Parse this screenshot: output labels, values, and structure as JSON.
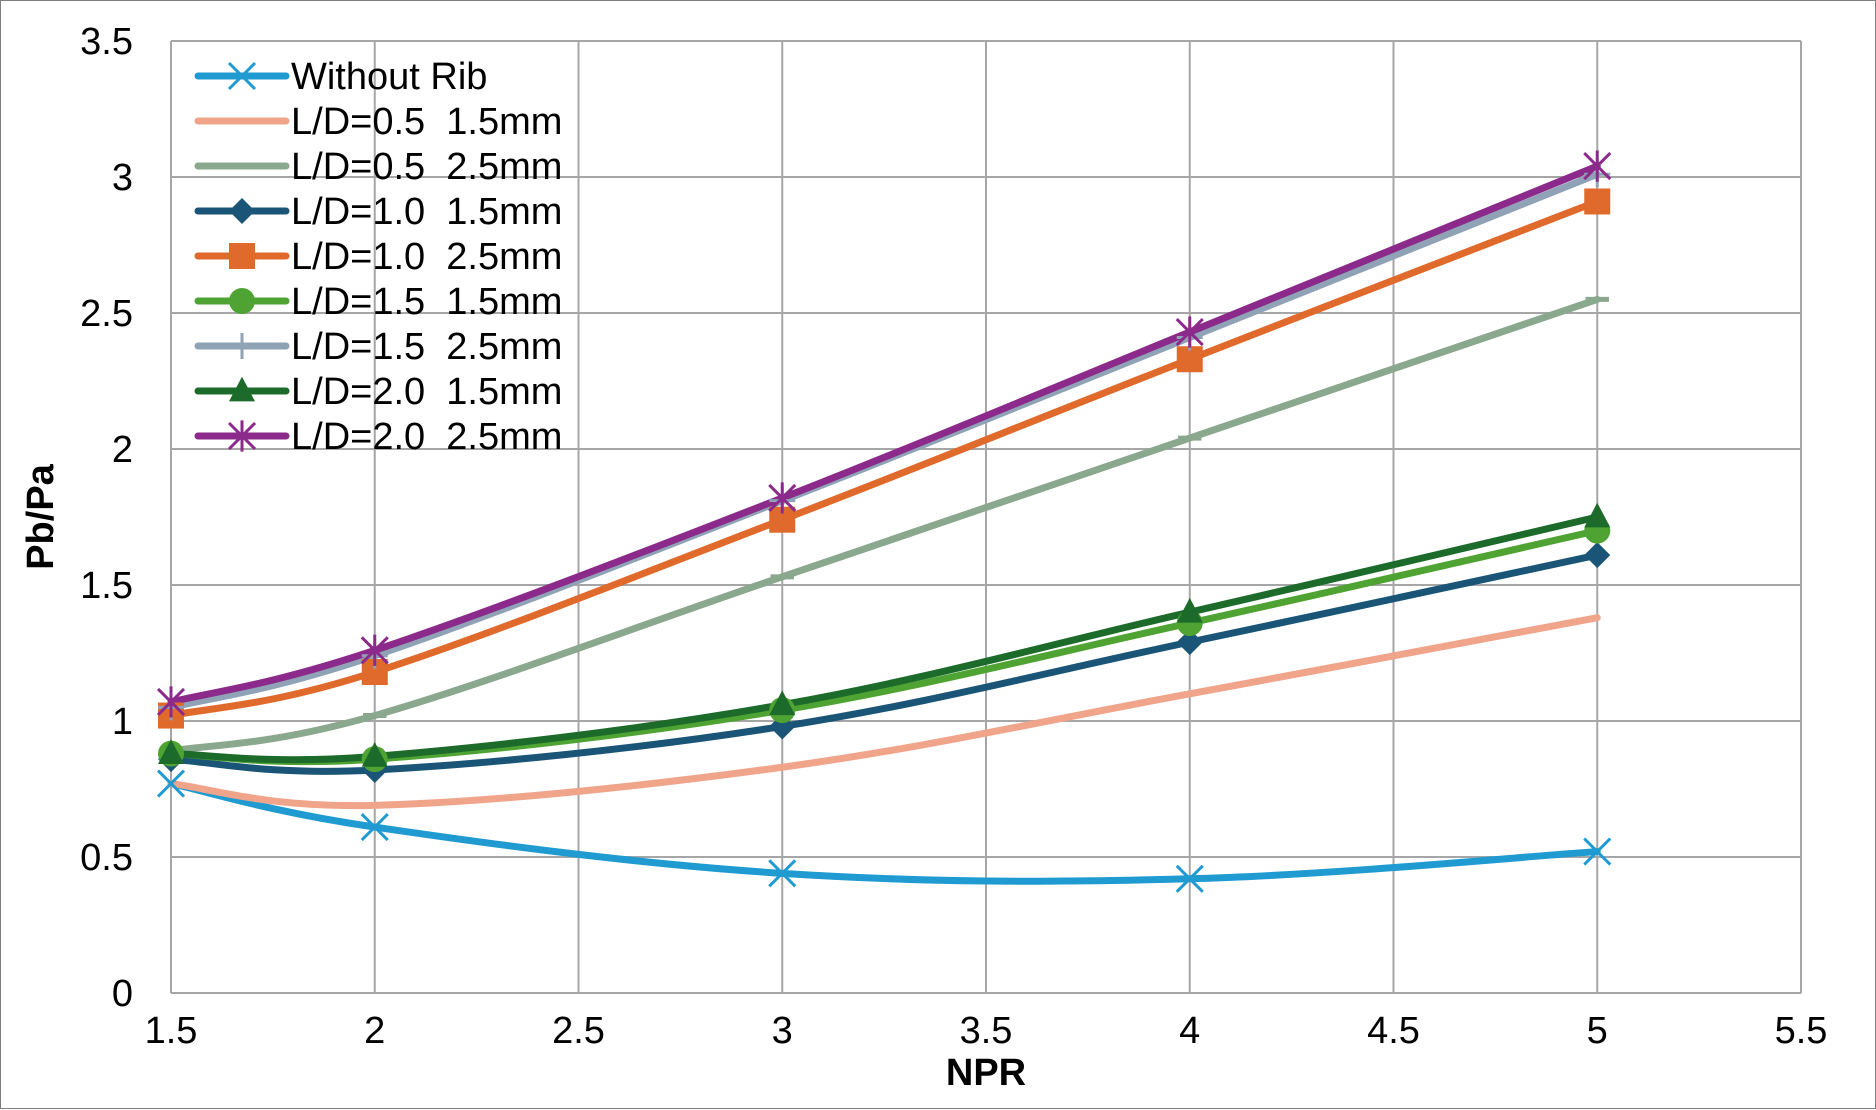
{
  "chart_data": {
    "type": "line",
    "xlabel": "NPR",
    "ylabel": "Pb/Pa",
    "xlim": [
      1.5,
      5.5
    ],
    "ylim": [
      0,
      3.5
    ],
    "x_ticks": [
      "1.5",
      "2",
      "2.5",
      "3",
      "3.5",
      "4",
      "4.5",
      "5",
      "5.5"
    ],
    "y_ticks": [
      "0",
      "0.5",
      "1",
      "1.5",
      "2",
      "2.5",
      "3",
      "3.5"
    ],
    "grid": true,
    "legend_position": "top-left inside",
    "x": [
      1.5,
      2,
      3,
      4,
      5
    ],
    "series": [
      {
        "name": "Without Rib",
        "values": [
          0.77,
          0.61,
          0.44,
          0.42,
          0.52
        ],
        "color": "#1f9bd1",
        "marker": "x"
      },
      {
        "name": "L/D=0.5  1.5mm",
        "values": [
          0.77,
          0.69,
          0.83,
          1.1,
          1.38
        ],
        "color": "#f0a48a",
        "marker": "none"
      },
      {
        "name": "L/D=0.5  2.5mm",
        "values": [
          0.89,
          1.02,
          1.53,
          2.04,
          2.55
        ],
        "color": "#8aa88e",
        "marker": "dash"
      },
      {
        "name": "L/D=1.0  1.5mm",
        "values": [
          0.86,
          0.82,
          0.98,
          1.29,
          1.61
        ],
        "color": "#1a5577",
        "marker": "diamond"
      },
      {
        "name": "L/D=1.0  2.5mm",
        "values": [
          1.02,
          1.18,
          1.74,
          2.33,
          2.91
        ],
        "color": "#e06a2b",
        "marker": "square"
      },
      {
        "name": "L/D=1.5  1.5mm",
        "values": [
          0.88,
          0.86,
          1.04,
          1.36,
          1.7
        ],
        "color": "#4ea333",
        "marker": "circle"
      },
      {
        "name": "L/D=1.5  2.5mm",
        "values": [
          1.05,
          1.24,
          1.81,
          2.41,
          3.01
        ],
        "color": "#8fa2b6",
        "marker": "plus"
      },
      {
        "name": "L/D=2.0  1.5mm",
        "values": [
          0.88,
          0.87,
          1.06,
          1.4,
          1.75
        ],
        "color": "#1c6b2a",
        "marker": "triangle"
      },
      {
        "name": "L/D=2.0  2.5mm",
        "values": [
          1.07,
          1.26,
          1.82,
          2.43,
          3.04
        ],
        "color": "#8b2a8b",
        "marker": "star"
      }
    ]
  }
}
